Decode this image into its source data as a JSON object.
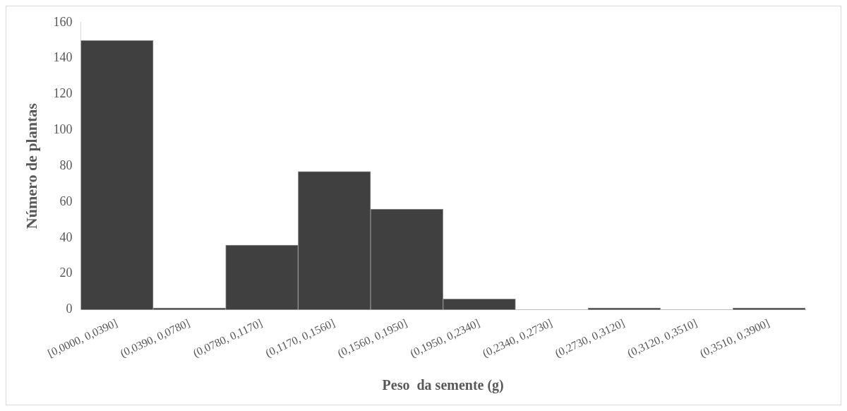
{
  "chart_data": {
    "type": "bar",
    "xlabel": "Peso  da semente (g)",
    "ylabel": "Número de plantas",
    "categories": [
      "[0,0000, 0,0390]",
      "(0,0390, 0,0780]",
      "(0,0780, 0,1170]",
      "(0,1170, 0,1560]",
      "(0,1560, 0,1950]",
      "(0,1950, 0,2340]",
      "(0,2340, 0,2730]",
      "(0,2730, 0,3120]",
      "(0,3120, 0,3510]",
      "(0,3510, 0,3900]"
    ],
    "values": [
      150,
      1,
      36,
      77,
      56,
      6,
      0,
      1,
      0,
      1
    ],
    "color": "#404040",
    "ylim": [
      0,
      160
    ],
    "yticks": [
      0,
      20,
      40,
      60,
      80,
      100,
      120,
      140,
      160
    ],
    "grid": false,
    "legend": false
  }
}
